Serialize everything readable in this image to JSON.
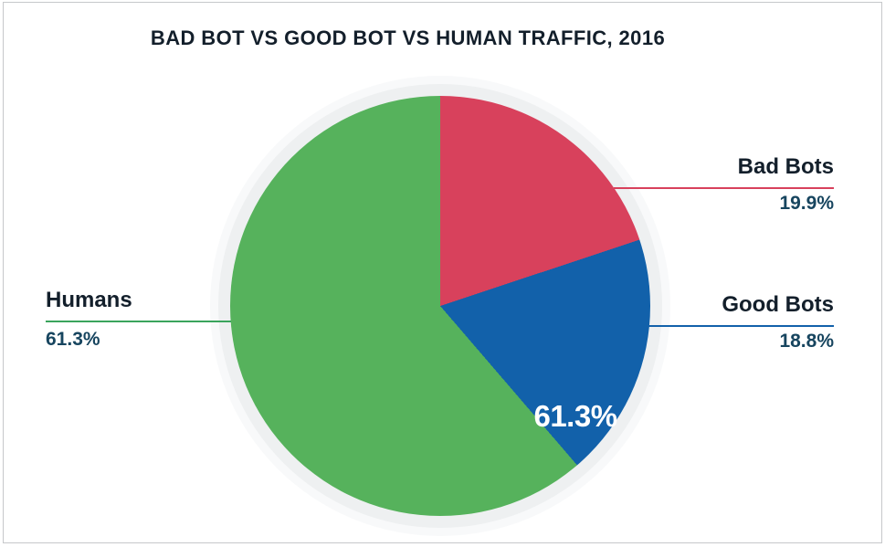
{
  "title": "BAD BOT VS GOOD BOT VS HUMAN TRAFFIC, 2016",
  "chart_data": {
    "type": "pie",
    "title": "BAD BOT VS GOOD BOT VS HUMAN TRAFFIC, 2016",
    "start_angle_deg": 0,
    "direction": "clockwise",
    "segments": [
      {
        "label": "Bad Bots",
        "value": 19.9,
        "pct_label": "19.9%",
        "color": "#d8415c",
        "line_color": "#d8415c",
        "callout_side": "right"
      },
      {
        "label": "Good Bots",
        "value": 18.8,
        "pct_label": "18.8%",
        "color": "#1261aa",
        "line_color": "#1261aa",
        "callout_side": "right"
      },
      {
        "label": "Humans",
        "value": 61.3,
        "pct_label": "61.3%",
        "color": "#56b25c",
        "line_color": "#3aa45c",
        "callout_side": "left"
      }
    ],
    "legend_position": "callouts",
    "grid": false,
    "colors": {
      "background": "#ffffff",
      "halo_ring": "#eef0f1",
      "title_text": "#131f2b",
      "name_text": "#131f2b",
      "pct_text": "#17455f",
      "slice_text": "#ffffff",
      "frame_border": "#c6c8ca"
    }
  }
}
